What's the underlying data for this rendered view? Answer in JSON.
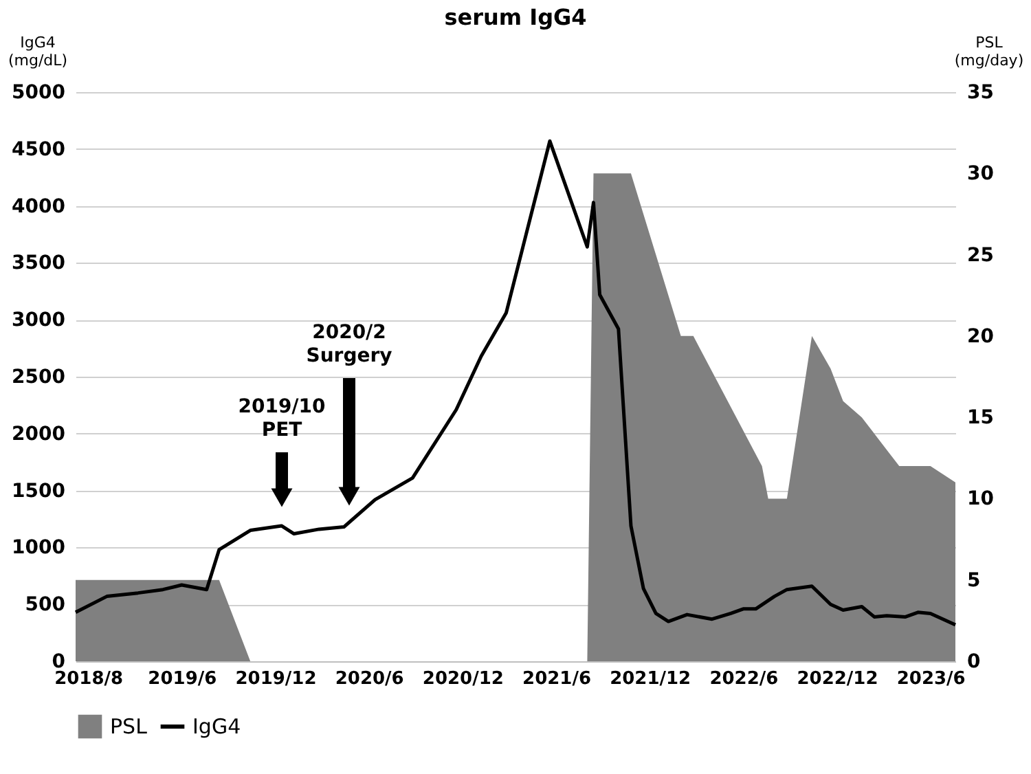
{
  "chart_data": {
    "type": "line",
    "title": "serum IgG4",
    "ylabel": "IgG4 (mg/dL)",
    "y2label": "PSL (mg/day)",
    "categories": [
      null,
      null,
      "2018/8",
      null,
      null,
      null,
      null,
      null,
      null,
      null,
      null,
      null,
      null,
      null,
      null,
      null,
      null,
      "2019/6",
      null,
      null,
      null,
      null,
      null,
      null,
      null,
      null,
      null,
      null,
      null,
      null,
      null,
      null,
      "2019/12",
      null,
      null,
      null,
      null,
      null,
      null,
      null,
      null,
      null,
      null,
      null,
      null,
      null,
      null,
      "2020/6",
      null,
      null,
      null,
      null,
      null,
      null,
      null,
      null,
      null,
      null,
      null,
      null,
      null,
      null,
      "2020/12",
      null,
      null,
      null,
      null,
      null,
      null,
      null,
      null,
      null,
      null,
      null,
      null,
      null,
      null,
      "2021/6",
      null,
      null,
      null,
      null,
      null,
      null,
      null,
      null,
      null,
      null,
      null,
      null,
      null,
      null,
      "2021/12",
      null,
      null,
      null,
      null,
      null,
      null,
      null,
      null,
      null,
      null,
      null,
      null,
      null,
      null,
      "2022/6",
      null,
      null,
      null,
      null,
      null,
      null,
      null,
      null,
      null,
      null,
      null,
      null,
      null,
      null,
      "2022/12",
      null,
      null,
      null,
      null,
      null,
      null,
      null,
      null,
      null,
      null,
      null,
      null,
      null,
      null,
      "2023/6",
      null,
      null,
      null,
      null
    ],
    "ylim": [
      0,
      5000
    ],
    "yticks": [
      0,
      500,
      1000,
      1500,
      2000,
      2500,
      3000,
      3500,
      4000,
      4500,
      5000
    ],
    "y2lim": [
      0,
      35
    ],
    "y2ticks": [
      0,
      5,
      10,
      15,
      20,
      25,
      30,
      35
    ],
    "grid": "y",
    "legend": "bottom",
    "series": [
      {
        "name": "PSL",
        "type": "area",
        "axis": "y2",
        "color": "#808080",
        "values": [
          5,
          null,
          null,
          null,
          null,
          null,
          null,
          null,
          null,
          null,
          null,
          null,
          null,
          null,
          null,
          null,
          null,
          null,
          null,
          null,
          null,
          null,
          null,
          5,
          null,
          null,
          null,
          null,
          0,
          null,
          null,
          null,
          null,
          null,
          null,
          null,
          null,
          null,
          null,
          null,
          null,
          null,
          null,
          null,
          null,
          null,
          null,
          null,
          null,
          null,
          null,
          null,
          null,
          null,
          null,
          null,
          null,
          null,
          null,
          null,
          null,
          null,
          null,
          null,
          null,
          null,
          null,
          null,
          null,
          null,
          null,
          null,
          null,
          null,
          null,
          null,
          null,
          null,
          null,
          null,
          null,
          null,
          0,
          30,
          null,
          null,
          null,
          null,
          null,
          30,
          null,
          null,
          null,
          25,
          null,
          null,
          null,
          20,
          null,
          20,
          null,
          null,
          null,
          null,
          null,
          null,
          null,
          null,
          null,
          null,
          12,
          10,
          null,
          null,
          10,
          null,
          null,
          null,
          20,
          null,
          null,
          18,
          null,
          16,
          null,
          null,
          15,
          null,
          null,
          null,
          13,
          null,
          12,
          null,
          null,
          null,
          null,
          12,
          null,
          null,
          null,
          11
        ]
      },
      {
        "name": "IgG4",
        "color": "#000000",
        "values": [
          430,
          null,
          null,
          null,
          null,
          570,
          null,
          null,
          null,
          null,
          600,
          null,
          null,
          null,
          630,
          null,
          null,
          670,
          null,
          null,
          null,
          630,
          null,
          980,
          null,
          null,
          null,
          null,
          1150,
          null,
          null,
          null,
          null,
          1190,
          null,
          1120,
          null,
          null,
          null,
          1160,
          null,
          null,
          null,
          1180,
          null,
          null,
          null,
          null,
          1420,
          null,
          null,
          null,
          null,
          null,
          1610,
          null,
          null,
          null,
          null,
          null,
          null,
          2210,
          null,
          null,
          null,
          2680,
          null,
          null,
          null,
          3060,
          null,
          null,
          null,
          null,
          null,
          null,
          4570,
          null,
          null,
          null,
          null,
          null,
          3640,
          4030,
          3220,
          null,
          null,
          2920,
          null,
          1190,
          null,
          640,
          null,
          420,
          null,
          350,
          null,
          null,
          410,
          null,
          null,
          null,
          370,
          null,
          null,
          420,
          null,
          460,
          null,
          460,
          null,
          null,
          570,
          null,
          630,
          null,
          null,
          null,
          660,
          null,
          null,
          500,
          null,
          450,
          null,
          null,
          480,
          null,
          390,
          null,
          400,
          null,
          null,
          390,
          null,
          430,
          null,
          420,
          null,
          null,
          null,
          320
        ]
      }
    ],
    "annotations": [
      "2019/10 PET",
      "2020/2 Surgery"
    ]
  }
}
